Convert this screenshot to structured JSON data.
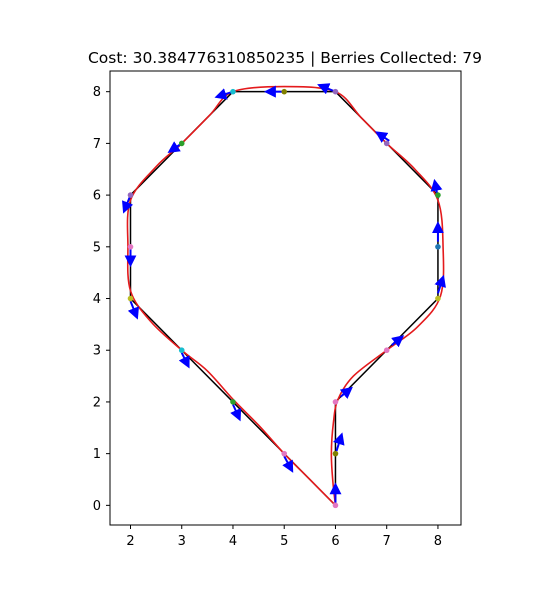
{
  "title": {
    "cost_label": "Cost:",
    "cost_value": "30.384776310850235",
    "separator": "|",
    "berries_label": "Berries Collected:",
    "berries_value": "79",
    "full": "Cost: 30.384776310850235 | Berries Collected: 79"
  },
  "chart_data": {
    "type": "line",
    "title": "Cost: 30.384776310850235 | Berries Collected: 79",
    "xlabel": "",
    "ylabel": "",
    "xlim": [
      1.6,
      8.45
    ],
    "ylim": [
      -0.38,
      8.4
    ],
    "xticks": [
      2,
      3,
      4,
      5,
      6,
      7,
      8
    ],
    "yticks": [
      0,
      1,
      2,
      3,
      4,
      5,
      6,
      7,
      8
    ],
    "grid": false,
    "legend": "none",
    "colors": {
      "path": "#000000",
      "smooth": "#e41a1c",
      "arrow": "#0000ff",
      "markers": [
        "#2ca02c",
        "#e377c2",
        "#9467bd",
        "#1f77b4",
        "#bcbd22",
        "#808000",
        "#17becf"
      ]
    },
    "series": [
      {
        "kind": "polygon-path",
        "color": "#000000",
        "points": [
          [
            6,
            0
          ],
          [
            6,
            2
          ],
          [
            7,
            3
          ],
          [
            8,
            4
          ],
          [
            8,
            6
          ],
          [
            7,
            7
          ],
          [
            6,
            8
          ],
          [
            4,
            8
          ],
          [
            3,
            7
          ],
          [
            2,
            6
          ],
          [
            2,
            4
          ],
          [
            3,
            3
          ],
          [
            4,
            2
          ],
          [
            5,
            1
          ],
          [
            6,
            0
          ]
        ]
      },
      {
        "kind": "smooth-path",
        "color": "#e41a1c",
        "points": [
          [
            6,
            0
          ],
          [
            5.95,
            0.45
          ],
          [
            5.92,
            1.0
          ],
          [
            5.96,
            1.6
          ],
          [
            6.05,
            2.05
          ],
          [
            6.35,
            2.5
          ],
          [
            7.0,
            3.0
          ],
          [
            7.6,
            3.45
          ],
          [
            8.05,
            4.05
          ],
          [
            8.1,
            5.0
          ],
          [
            8.0,
            5.9
          ],
          [
            7.55,
            6.5
          ],
          [
            7.0,
            7.0
          ],
          [
            6.5,
            7.5
          ],
          [
            6.0,
            8.0
          ],
          [
            5.0,
            8.1
          ],
          [
            4.0,
            8.0
          ],
          [
            3.55,
            7.55
          ],
          [
            3.0,
            7.0
          ],
          [
            2.5,
            6.55
          ],
          [
            2.0,
            5.9
          ],
          [
            1.95,
            5.0
          ],
          [
            2.0,
            4.15
          ],
          [
            2.4,
            3.55
          ],
          [
            3.0,
            3.0
          ],
          [
            3.5,
            2.6
          ],
          [
            4.0,
            2.05
          ],
          [
            4.5,
            1.55
          ],
          [
            5.0,
            1.0
          ],
          [
            5.5,
            0.5
          ],
          [
            6,
            0
          ]
        ]
      }
    ],
    "markers": [
      {
        "x": 6,
        "y": 0,
        "color": "#e377c2"
      },
      {
        "x": 6,
        "y": 1,
        "color": "#808000"
      },
      {
        "x": 6,
        "y": 2,
        "color": "#e377c2"
      },
      {
        "x": 7,
        "y": 3,
        "color": "#e377c2"
      },
      {
        "x": 8,
        "y": 4,
        "color": "#bcbd22"
      },
      {
        "x": 8,
        "y": 5,
        "color": "#1f77b4"
      },
      {
        "x": 8,
        "y": 6,
        "color": "#2ca02c"
      },
      {
        "x": 7,
        "y": 7,
        "color": "#9467bd"
      },
      {
        "x": 6,
        "y": 8,
        "color": "#9467bd"
      },
      {
        "x": 5,
        "y": 8,
        "color": "#808000"
      },
      {
        "x": 4,
        "y": 8,
        "color": "#17becf"
      },
      {
        "x": 3,
        "y": 7,
        "color": "#2ca02c"
      },
      {
        "x": 2,
        "y": 6,
        "color": "#9467bd"
      },
      {
        "x": 2,
        "y": 5,
        "color": "#e377c2"
      },
      {
        "x": 2,
        "y": 4,
        "color": "#bcbd22"
      },
      {
        "x": 3,
        "y": 3,
        "color": "#17becf"
      },
      {
        "x": 4,
        "y": 2,
        "color": "#2ca02c"
      },
      {
        "x": 5,
        "y": 1,
        "color": "#e377c2"
      }
    ],
    "arrows": [
      {
        "x": 6.0,
        "y": 0.05,
        "dx": 0.0,
        "dy": 0.28
      },
      {
        "x": 6.02,
        "y": 1.05,
        "dx": 0.08,
        "dy": 0.25
      },
      {
        "x": 6.1,
        "y": 2.1,
        "dx": 0.15,
        "dy": 0.12
      },
      {
        "x": 7.1,
        "y": 3.1,
        "dx": 0.15,
        "dy": 0.12
      },
      {
        "x": 8.0,
        "y": 4.1,
        "dx": 0.08,
        "dy": 0.25
      },
      {
        "x": 8.0,
        "y": 5.1,
        "dx": 0.0,
        "dy": 0.28
      },
      {
        "x": 8.0,
        "y": 5.95,
        "dx": -0.05,
        "dy": 0.25
      },
      {
        "x": 7.05,
        "y": 7.05,
        "dx": -0.18,
        "dy": 0.12
      },
      {
        "x": 6.0,
        "y": 8.0,
        "dx": -0.25,
        "dy": 0.1
      },
      {
        "x": 5.0,
        "y": 8.0,
        "dx": -0.28,
        "dy": 0.0
      },
      {
        "x": 4.0,
        "y": 8.0,
        "dx": -0.25,
        "dy": -0.08
      },
      {
        "x": 3.0,
        "y": 7.0,
        "dx": -0.18,
        "dy": -0.12
      },
      {
        "x": 2.0,
        "y": 6.0,
        "dx": -0.1,
        "dy": -0.25
      },
      {
        "x": 2.0,
        "y": 5.0,
        "dx": 0.0,
        "dy": -0.28
      },
      {
        "x": 2.0,
        "y": 3.95,
        "dx": 0.1,
        "dy": -0.25
      },
      {
        "x": 3.0,
        "y": 2.95,
        "dx": 0.1,
        "dy": -0.2
      },
      {
        "x": 4.0,
        "y": 1.95,
        "dx": 0.1,
        "dy": -0.22
      },
      {
        "x": 5.0,
        "y": 0.95,
        "dx": 0.12,
        "dy": -0.22
      }
    ]
  }
}
